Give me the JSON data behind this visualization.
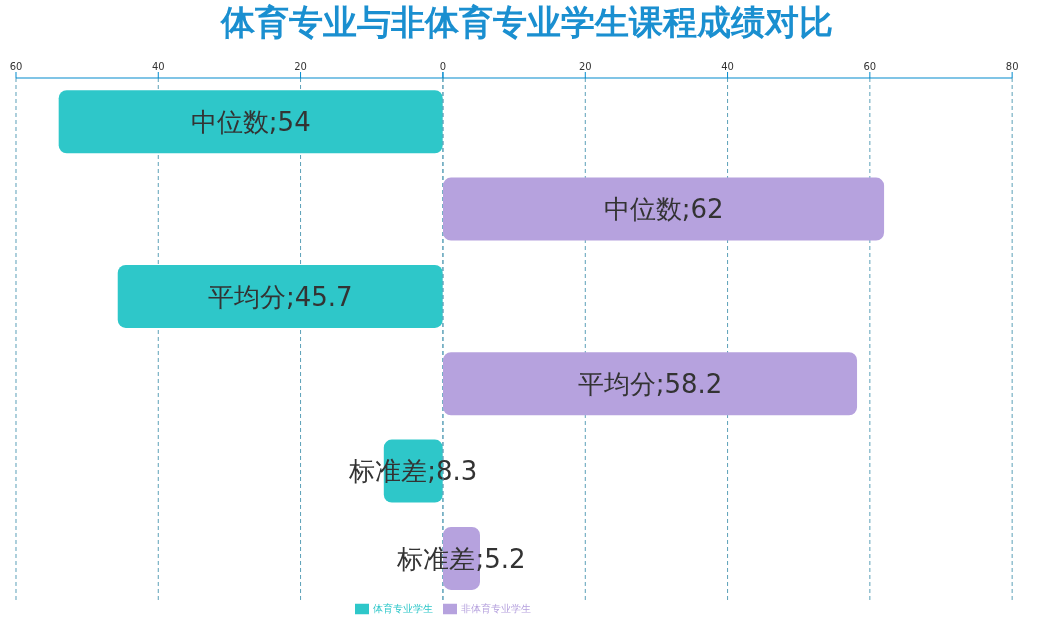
{
  "chart_data": [
    {
      "type": "bar",
      "title": "体育专业与非体育专业学生课程成绩对比",
      "orientation": "horizontal",
      "categories": [
        null,
        null,
        null,
        null,
        null,
        null
      ],
      "series": [
        {
          "name": "体育专业学生",
          "color": "#2ec7c9",
          "values": [
            54,
            null,
            45.7,
            null,
            8.3,
            null
          ],
          "value_labels": [
            "中位数;54",
            null,
            "平均分;45.7",
            null,
            "标准差;8.3",
            null
          ]
        }
      ],
      "xlim": [
        60,
        0
      ],
      "xticks": [
        60,
        40,
        20,
        0
      ],
      "grid": "x",
      "legend": "bottom"
    },
    {
      "type": "bar",
      "orientation": "horizontal",
      "categories": [
        null,
        null,
        null,
        null,
        null,
        null
      ],
      "series": [
        {
          "name": "非体育专业学生",
          "color": "#b6a2de",
          "values": [
            null,
            62,
            null,
            58.2,
            null,
            5.2
          ],
          "value_labels": [
            null,
            "中位数;62",
            null,
            "平均分;58.2",
            null,
            "标准差;5.2"
          ]
        }
      ],
      "xlim": [
        0,
        80
      ],
      "xticks": [
        {
          "value": 0,
          "label": null
        },
        20,
        40,
        60,
        80
      ],
      "grid": "x",
      "legend": "bottom"
    }
  ]
}
